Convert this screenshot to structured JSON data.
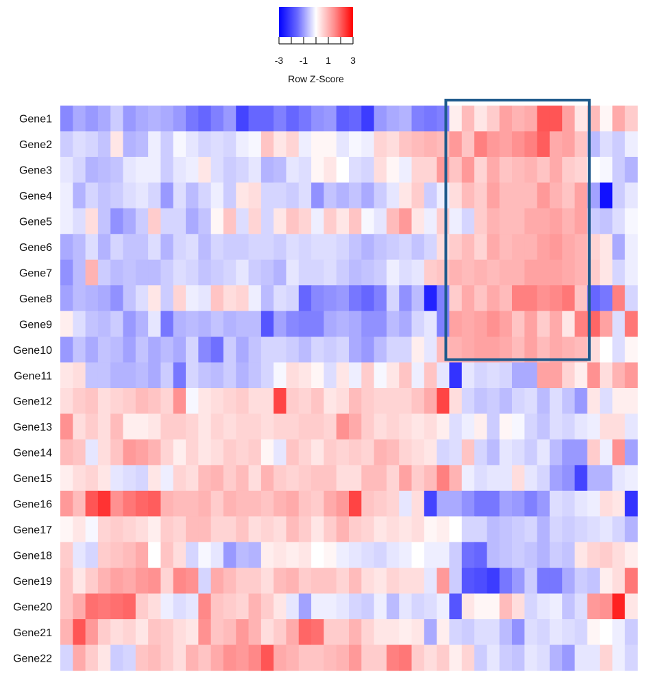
{
  "chart_data": {
    "type": "heatmap",
    "title": "",
    "legend": {
      "title": "Row Z-Score",
      "ticks": [
        "-3",
        "-1",
        "1",
        "3"
      ],
      "range": [
        -3,
        3
      ],
      "colors": {
        "low": "#0000ff",
        "mid": "#ffffff",
        "high": "#ff0000"
      }
    },
    "rows": [
      "Gene1",
      "Gene2",
      "Gene3",
      "Gene4",
      "Gene5",
      "Gene6",
      "Gene7",
      "Gene8",
      "Gene9",
      "Gene10",
      "Gene11",
      "Gene12",
      "Gene13",
      "Gene14",
      "Gene15",
      "Gene16",
      "Gene17",
      "Gene18",
      "Gene19",
      "Gene20",
      "Gene21",
      "Gene22"
    ],
    "n_columns": 46,
    "values": [
      [
        -1.4,
        -1.0,
        -1.2,
        -1.0,
        -0.6,
        -1.2,
        -1.0,
        -0.9,
        -1.0,
        -1.2,
        -1.6,
        -1.8,
        -1.5,
        -1.2,
        -2.2,
        -1.8,
        -1.8,
        -1.5,
        -1.8,
        -1.6,
        -1.3,
        -1.2,
        -1.9,
        -1.8,
        -2.3,
        -1.2,
        -1.0,
        -0.9,
        -1.5,
        -1.6,
        -1.5,
        0.2,
        0.8,
        0.3,
        0.6,
        1.1,
        0.9,
        1.0,
        2.0,
        2.0,
        1.1,
        0.3,
        0.8,
        0.1,
        1.0,
        0.6
      ],
      [
        -0.6,
        -0.4,
        -0.5,
        -0.7,
        0.3,
        -0.9,
        -0.8,
        -0.2,
        -0.6,
        -0.1,
        -0.3,
        -0.5,
        -0.4,
        -0.5,
        -0.2,
        -0.1,
        0.7,
        0.3,
        0.5,
        -0.2,
        0.1,
        0.1,
        -0.3,
        -0.1,
        -0.2,
        0.5,
        0.4,
        0.7,
        0.8,
        0.9,
        0.8,
        1.2,
        0.7,
        1.5,
        1.2,
        1.1,
        1.3,
        1.5,
        1.9,
        1.0,
        1.1,
        0.7,
        -0.8,
        -0.4,
        -0.6,
        -0.2
      ],
      [
        -0.3,
        -0.5,
        -0.9,
        -0.8,
        -0.7,
        -0.3,
        -0.2,
        -0.2,
        -0.6,
        -0.3,
        -0.2,
        0.3,
        -0.4,
        -0.6,
        -0.5,
        -0.3,
        -0.9,
        -0.8,
        -0.3,
        -0.4,
        0.1,
        0.3,
        0.0,
        -0.4,
        -0.5,
        0.4,
        0.1,
        -0.2,
        0.5,
        0.5,
        1.2,
        0.7,
        1.2,
        0.5,
        1.0,
        0.7,
        0.8,
        0.9,
        0.7,
        1.0,
        0.6,
        0.5,
        0.0,
        -0.1,
        -0.6,
        -0.9
      ],
      [
        -0.2,
        -0.9,
        -0.5,
        -0.7,
        -0.6,
        -0.4,
        -0.3,
        -0.5,
        -1.2,
        -0.4,
        -0.8,
        -0.5,
        -0.2,
        -0.6,
        0.3,
        0.4,
        -0.5,
        -0.5,
        -0.6,
        -0.4,
        -1.3,
        -0.7,
        -0.9,
        -0.7,
        -1.0,
        -0.6,
        -0.3,
        0.3,
        0.6,
        -0.6,
        -0.2,
        0.4,
        0.8,
        0.6,
        1.1,
        0.8,
        0.8,
        0.8,
        1.2,
        0.9,
        0.7,
        1.1,
        -1.1,
        -2.8,
        -0.6,
        -0.3
      ],
      [
        -0.2,
        -0.4,
        0.4,
        -0.7,
        -1.3,
        -1.0,
        -0.6,
        0.6,
        -0.5,
        -0.5,
        -1.0,
        -0.7,
        0.1,
        0.7,
        -0.4,
        0.5,
        -0.5,
        0.3,
        0.7,
        0.5,
        -0.2,
        0.6,
        0.3,
        0.7,
        -0.1,
        -0.3,
        0.8,
        1.2,
        0.3,
        -0.2,
        0.6,
        -0.2,
        -0.5,
        0.6,
        0.9,
        0.8,
        0.8,
        1.0,
        1.0,
        1.1,
        0.9,
        1.1,
        -0.6,
        -0.7,
        -0.4,
        -0.1
      ],
      [
        -1.0,
        -0.8,
        -0.4,
        -0.9,
        -0.5,
        -0.7,
        -0.7,
        -0.4,
        -0.9,
        -0.5,
        -0.4,
        -0.8,
        -0.5,
        -0.6,
        -0.6,
        -0.5,
        -0.5,
        -0.6,
        -0.4,
        -0.5,
        -0.4,
        -0.4,
        -0.5,
        -0.7,
        -0.9,
        -0.7,
        -0.6,
        -0.5,
        -0.7,
        -0.5,
        0.4,
        0.6,
        0.8,
        0.5,
        1.0,
        0.8,
        0.9,
        0.9,
        1.1,
        1.2,
        1.0,
        0.9,
        0.5,
        0.3,
        -1.0,
        -0.2
      ],
      [
        -1.3,
        -0.8,
        0.9,
        -0.6,
        -0.8,
        -0.7,
        -0.8,
        -0.8,
        -0.6,
        -0.4,
        -0.5,
        -0.7,
        -0.6,
        -0.5,
        -0.3,
        -0.6,
        -0.7,
        -0.9,
        -0.3,
        -0.5,
        -0.5,
        -0.4,
        -0.6,
        -0.8,
        -0.7,
        -0.6,
        -0.2,
        -0.4,
        -0.3,
        0.6,
        0.7,
        0.9,
        0.8,
        0.9,
        0.8,
        0.9,
        0.9,
        1.1,
        1.1,
        1.1,
        1.0,
        0.9,
        0.6,
        0.3,
        -0.5,
        -0.2
      ],
      [
        -1.1,
        -0.8,
        -0.9,
        -1.0,
        -1.3,
        -0.7,
        -0.4,
        0.3,
        -0.6,
        0.5,
        -0.2,
        -0.3,
        0.7,
        0.4,
        0.5,
        -0.2,
        -0.8,
        -0.4,
        -0.5,
        -1.8,
        -1.4,
        -1.3,
        -1.2,
        -1.6,
        -1.8,
        -1.5,
        -0.5,
        -1.3,
        -0.8,
        -2.6,
        -1.5,
        0.6,
        1.0,
        0.7,
        1.0,
        0.8,
        1.5,
        1.5,
        1.3,
        1.4,
        1.6,
        0.7,
        -1.8,
        -1.6,
        1.5,
        -0.5
      ],
      [
        0.2,
        -0.4,
        -0.7,
        -0.8,
        -0.6,
        -1.2,
        -0.9,
        -0.3,
        -1.6,
        -0.9,
        -0.8,
        -0.9,
        -0.7,
        -0.9,
        -0.8,
        -0.8,
        -2.0,
        -1.1,
        -1.4,
        -1.5,
        -1.5,
        -1.0,
        -0.9,
        -1.0,
        -1.3,
        -1.3,
        -0.8,
        -1.0,
        -0.5,
        -0.3,
        -1.5,
        1.1,
        1.0,
        1.1,
        1.3,
        1.1,
        0.7,
        1.1,
        0.6,
        1.0,
        0.3,
        1.5,
        1.8,
        1.1,
        -0.4,
        1.6
      ],
      [
        -1.2,
        -0.7,
        -1.0,
        -0.7,
        -0.8,
        -1.1,
        -0.7,
        -1.0,
        -0.8,
        -1.0,
        -0.5,
        -1.4,
        -1.7,
        -0.6,
        -1.0,
        -0.7,
        -0.5,
        -0.5,
        -0.6,
        -0.8,
        -0.5,
        -0.6,
        -0.5,
        -1.0,
        -1.2,
        -0.8,
        -0.5,
        -0.5,
        0.2,
        -0.3,
        0.8,
        0.9,
        1.0,
        1.1,
        1.1,
        1.0,
        0.8,
        1.1,
        0.8,
        1.0,
        0.9,
        0.8,
        0.4,
        0.0,
        -0.4,
        0.1
      ],
      [
        0.3,
        0.4,
        -0.7,
        -0.7,
        -0.9,
        -0.9,
        -0.8,
        -1.0,
        -0.6,
        -1.6,
        -0.5,
        -0.7,
        -0.8,
        -0.6,
        -0.9,
        -0.7,
        -0.5,
        -0.1,
        0.4,
        0.3,
        0.1,
        -0.4,
        0.3,
        -0.2,
        0.6,
        -0.1,
        0.3,
        0.7,
        -0.2,
        0.7,
        -0.3,
        -2.4,
        -0.3,
        -0.5,
        -0.4,
        -0.5,
        -1.0,
        -1.0,
        1.1,
        1.1,
        0.5,
        0.2,
        1.3,
        0.4,
        0.9,
        1.2
      ],
      [
        0.4,
        0.6,
        0.7,
        0.4,
        0.5,
        0.6,
        0.8,
        0.7,
        0.5,
        1.3,
        -0.1,
        0.3,
        0.4,
        0.5,
        0.6,
        0.4,
        0.4,
        2.2,
        0.6,
        0.5,
        0.7,
        0.3,
        0.4,
        0.8,
        0.6,
        0.5,
        0.5,
        0.5,
        0.7,
        1.0,
        2.2,
        0.4,
        -0.5,
        -0.7,
        -0.6,
        -0.8,
        -0.5,
        -0.4,
        -0.8,
        -0.4,
        -0.7,
        -1.2,
        0.3,
        -0.4,
        0.2,
        0.2
      ],
      [
        1.3,
        0.4,
        0.6,
        0.4,
        0.8,
        0.2,
        0.2,
        0.3,
        0.6,
        0.6,
        0.5,
        0.3,
        0.5,
        0.4,
        0.5,
        0.5,
        0.4,
        0.5,
        0.5,
        0.6,
        0.6,
        0.5,
        1.3,
        1.0,
        0.6,
        0.4,
        0.5,
        0.4,
        0.3,
        0.4,
        0.2,
        -0.4,
        -0.2,
        0.2,
        -0.6,
        0.1,
        -0.1,
        -0.5,
        -0.7,
        -0.4,
        -0.5,
        -0.3,
        -0.2,
        0.4,
        0.4,
        -0.3
      ],
      [
        0.8,
        0.7,
        -0.3,
        0.4,
        0.7,
        1.2,
        1.1,
        0.9,
        0.5,
        0.2,
        0.5,
        0.3,
        0.4,
        0.6,
        0.5,
        0.6,
        0.1,
        -0.3,
        0.7,
        0.5,
        0.3,
        0.6,
        0.5,
        0.6,
        0.5,
        0.9,
        0.8,
        0.5,
        0.4,
        0.3,
        -0.5,
        -0.4,
        0.7,
        -0.5,
        -0.8,
        -0.3,
        -0.4,
        -0.6,
        -0.3,
        -0.8,
        -1.2,
        -1.2,
        0.6,
        -0.2,
        1.3,
        -1.1
      ],
      [
        0.2,
        0.4,
        0.5,
        0.3,
        -0.3,
        -0.4,
        -0.5,
        0.3,
        -0.2,
        0.5,
        0.4,
        0.8,
        0.9,
        0.6,
        0.8,
        0.4,
        0.9,
        0.6,
        0.5,
        0.6,
        0.7,
        0.7,
        0.4,
        0.4,
        0.8,
        0.8,
        0.5,
        1.1,
        0.6,
        0.8,
        1.5,
        0.9,
        -0.2,
        -0.4,
        -0.3,
        -0.3,
        0.4,
        -0.3,
        -0.5,
        -1.1,
        -1.3,
        -2.2,
        -0.9,
        -0.9,
        -0.3,
        -0.2
      ],
      [
        1.2,
        0.8,
        2.0,
        2.4,
        1.3,
        1.6,
        1.8,
        1.9,
        0.9,
        0.8,
        0.8,
        0.9,
        0.6,
        0.9,
        0.8,
        0.8,
        0.7,
        0.9,
        1.0,
        0.7,
        0.6,
        1.0,
        1.2,
        2.2,
        0.7,
        0.6,
        0.5,
        -0.3,
        0.4,
        -2.2,
        -1.0,
        -1.0,
        -1.3,
        -1.6,
        -1.6,
        -1.1,
        -1.2,
        -1.5,
        -1.2,
        -0.4,
        -0.5,
        -0.3,
        -0.2,
        0.4,
        0.3,
        -2.4
      ],
      [
        0.1,
        0.3,
        -0.1,
        0.5,
        0.6,
        0.5,
        0.4,
        0.2,
        0.6,
        0.5,
        0.8,
        0.8,
        0.5,
        0.5,
        0.7,
        0.4,
        0.5,
        0.4,
        0.8,
        0.6,
        0.3,
        0.6,
        0.9,
        0.6,
        0.5,
        0.3,
        0.4,
        0.3,
        0.4,
        0.1,
        0.2,
        0.0,
        -0.5,
        -0.5,
        -0.8,
        -0.7,
        -0.6,
        -0.5,
        -0.9,
        -0.5,
        -0.6,
        -0.5,
        -0.4,
        -0.3,
        -0.5,
        -0.9
      ],
      [
        0.6,
        -0.3,
        -0.5,
        0.6,
        0.7,
        0.8,
        1.0,
        0.0,
        0.7,
        0.4,
        -0.5,
        -0.1,
        -0.3,
        -1.2,
        -0.8,
        -0.9,
        0.2,
        0.3,
        0.2,
        0.3,
        0.0,
        0.1,
        -0.2,
        -0.3,
        -0.4,
        -0.5,
        -0.3,
        -0.2,
        0.0,
        -0.2,
        -0.2,
        -0.6,
        -1.7,
        -1.8,
        -0.8,
        -0.7,
        -0.6,
        -0.7,
        -0.9,
        -0.6,
        -0.7,
        0.3,
        0.5,
        0.6,
        0.4,
        0.2
      ],
      [
        0.7,
        0.3,
        0.6,
        0.9,
        1.1,
        1.0,
        1.2,
        1.3,
        0.5,
        1.4,
        1.3,
        -0.5,
        1.0,
        0.8,
        0.6,
        0.6,
        0.4,
        0.8,
        0.9,
        0.6,
        0.7,
        0.7,
        0.5,
        0.8,
        0.4,
        0.3,
        0.5,
        0.4,
        0.4,
        -0.3,
        1.2,
        -0.6,
        -2.0,
        -2.1,
        -2.3,
        -1.6,
        -1.2,
        -0.6,
        -1.6,
        -1.6,
        -1.0,
        -0.6,
        -0.7,
        0.2,
        0.4,
        1.6
      ],
      [
        0.7,
        1.0,
        1.7,
        1.6,
        1.7,
        1.8,
        0.6,
        0.4,
        -0.2,
        -0.4,
        -0.3,
        1.4,
        0.7,
        0.6,
        0.5,
        0.9,
        0.6,
        0.3,
        -0.3,
        -1.1,
        -0.2,
        -0.2,
        -0.3,
        -0.5,
        -0.6,
        -0.2,
        -0.8,
        -0.3,
        -0.5,
        -0.4,
        -0.2,
        -2.0,
        0.3,
        0.1,
        0.1,
        0.8,
        0.4,
        -0.5,
        -0.3,
        -0.2,
        -0.7,
        -0.4,
        1.2,
        1.3,
        2.6,
        0.3
      ],
      [
        0.9,
        2.0,
        1.2,
        0.6,
        0.4,
        0.5,
        0.3,
        0.7,
        0.6,
        0.4,
        0.3,
        1.3,
        0.7,
        0.8,
        1.2,
        0.9,
        0.4,
        0.6,
        1.0,
        1.8,
        1.7,
        0.6,
        0.6,
        0.9,
        0.5,
        0.3,
        0.3,
        0.2,
        0.3,
        -1.0,
        0.2,
        -0.5,
        -0.6,
        -0.4,
        -0.4,
        -0.8,
        -1.3,
        -0.4,
        -0.5,
        -0.3,
        -0.4,
        -0.5,
        0.1,
        0.0,
        -0.2,
        -0.6
      ],
      [
        -0.5,
        1.0,
        0.6,
        0.3,
        -0.6,
        -0.5,
        0.7,
        0.8,
        0.6,
        0.4,
        0.9,
        0.7,
        1.0,
        1.3,
        1.2,
        1.4,
        2.0,
        1.0,
        0.9,
        0.7,
        0.7,
        0.8,
        0.9,
        1.2,
        0.6,
        0.6,
        1.5,
        1.6,
        0.6,
        0.4,
        0.6,
        0.2,
        0.5,
        -0.6,
        -0.3,
        -0.6,
        -0.7,
        -0.3,
        -0.4,
        -0.9,
        -1.2,
        -0.3,
        -0.3,
        0.5,
        -0.2,
        -0.5
      ]
    ],
    "annotations": [
      {
        "type": "box",
        "description": "highlighted cluster",
        "rows": [
          "Gene1",
          "Gene10"
        ],
        "columns": [
          31,
          41
        ]
      }
    ]
  }
}
